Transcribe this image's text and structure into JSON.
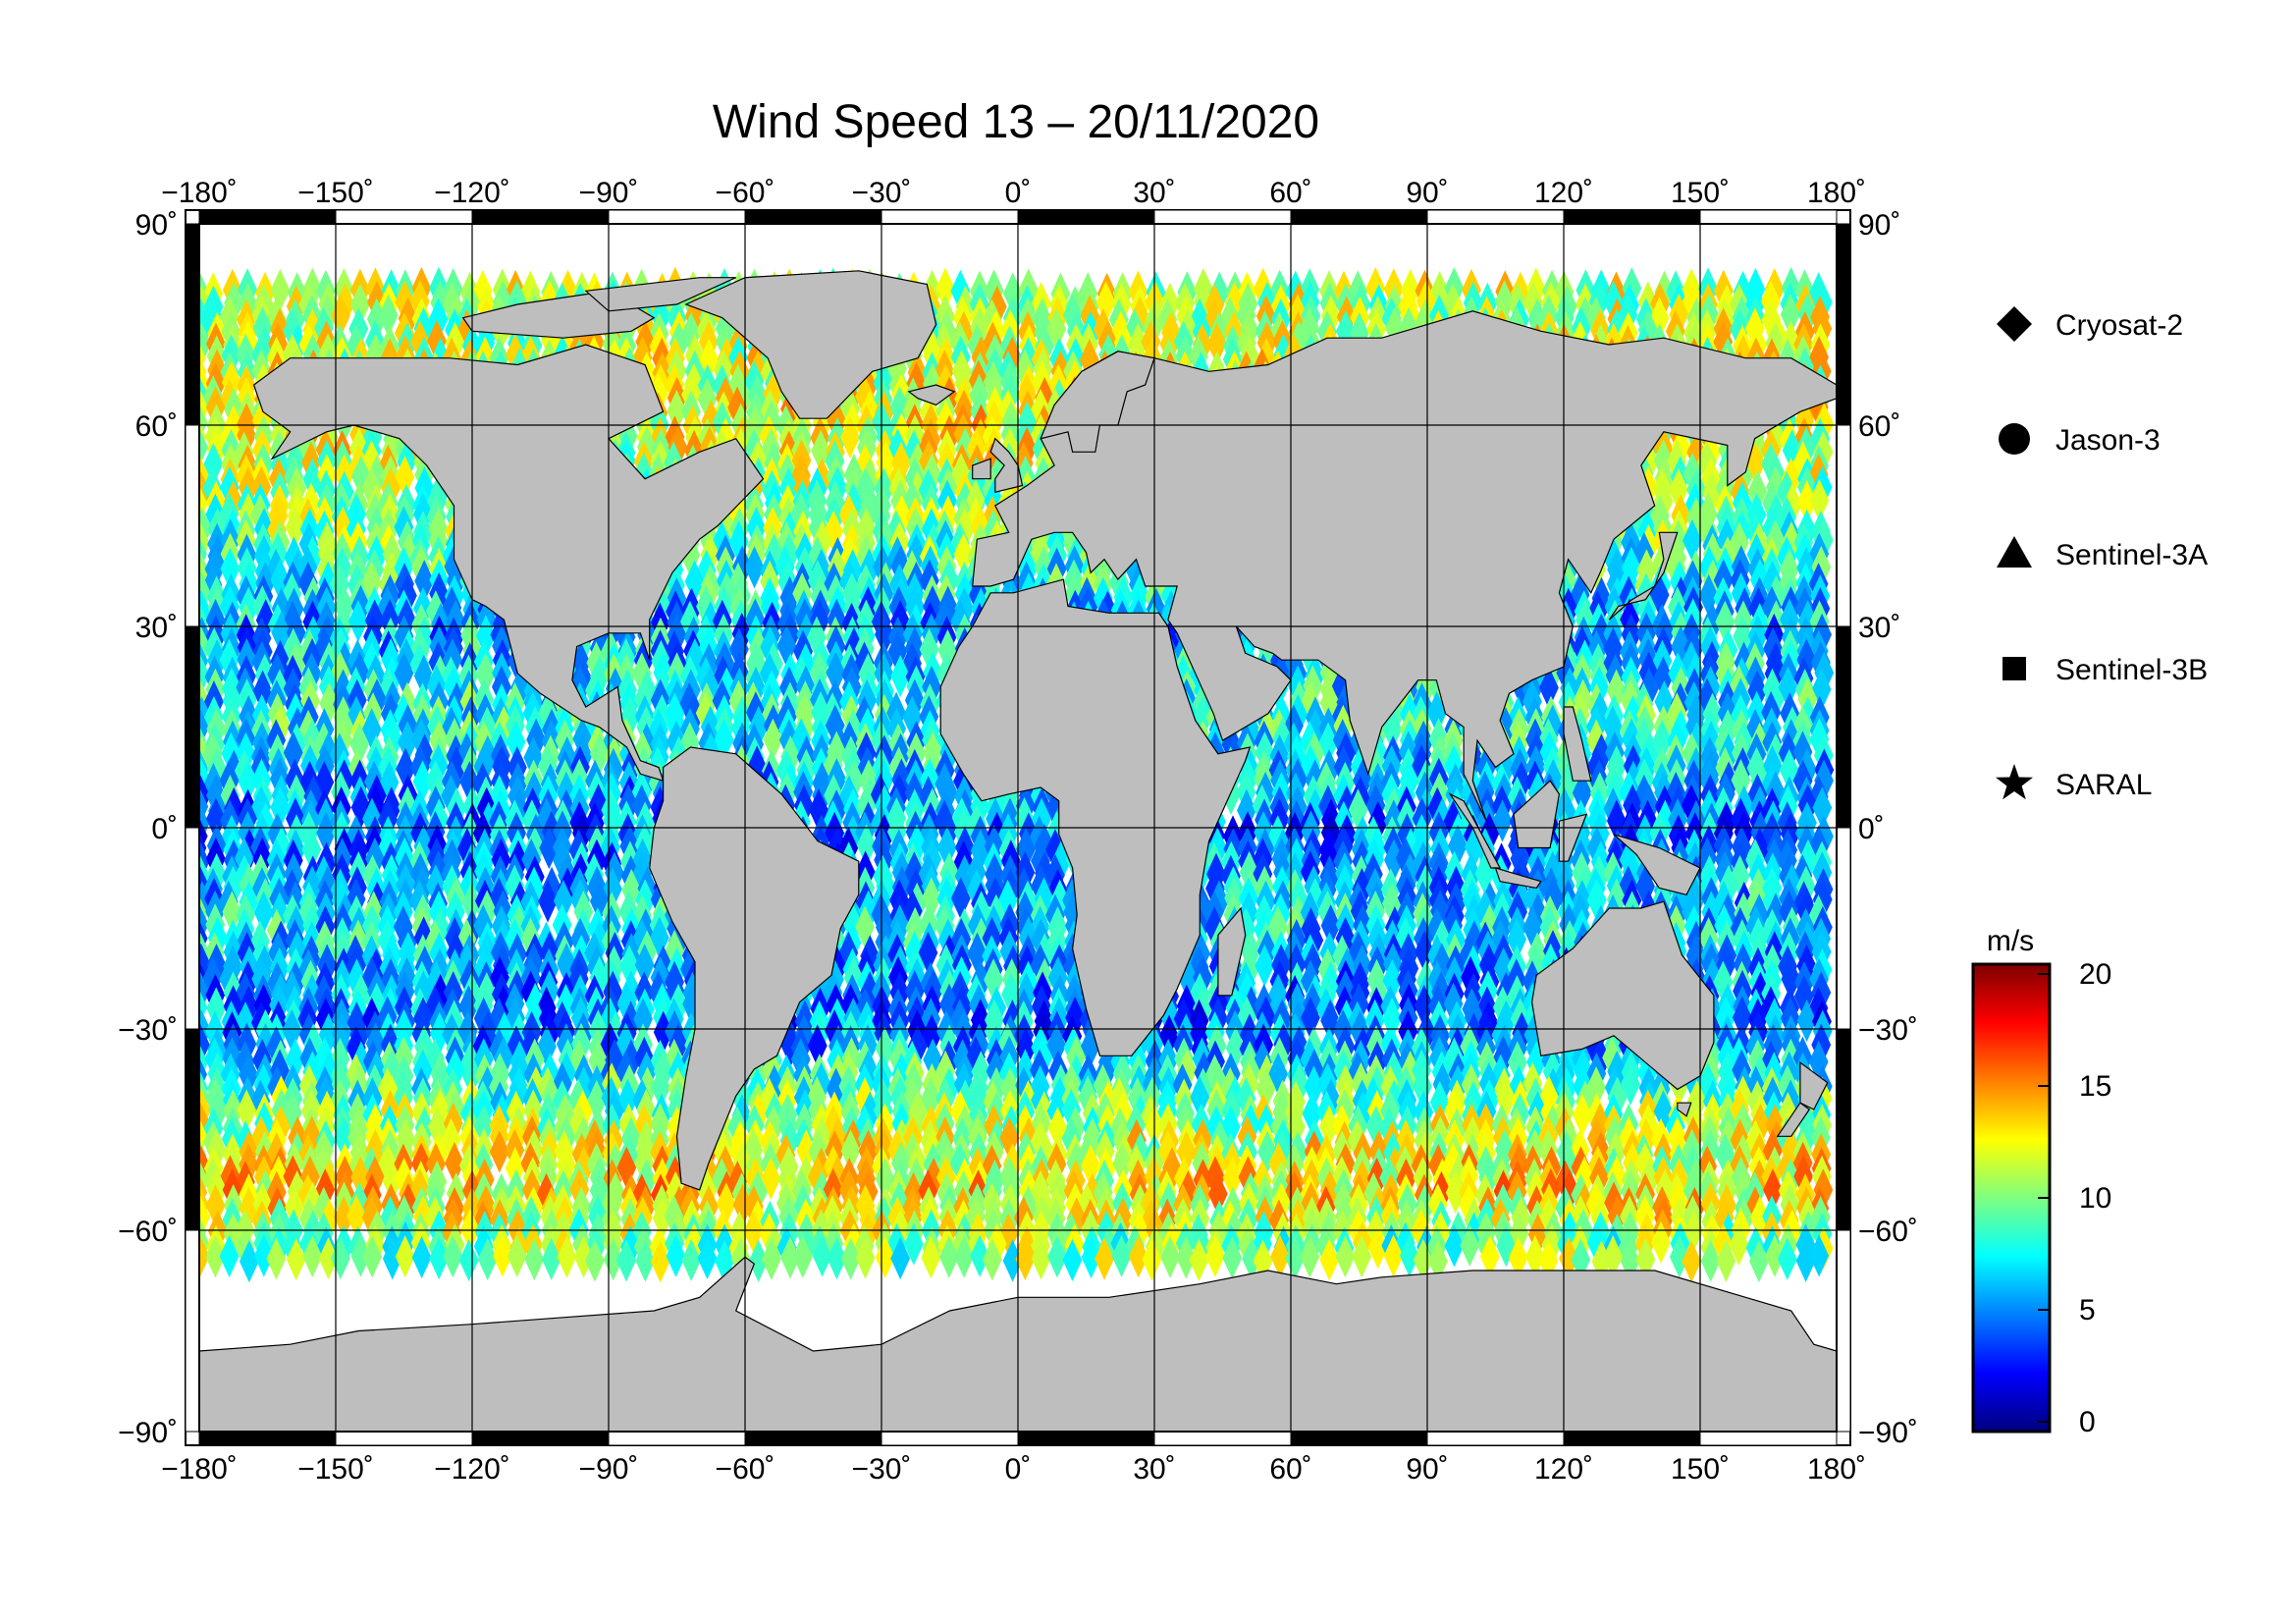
{
  "title": "Wind Speed 13 – 20/11/2020",
  "map": {
    "projection": "equirectangular",
    "lon_range": [
      -180,
      180
    ],
    "lat_range": [
      -90,
      90
    ],
    "grid_lon_step": 30,
    "grid_lat_step": 30,
    "land_color": "#bebebe",
    "ice_color": "#ffffff",
    "ocean_background": "#ffffff",
    "lon_ticks": [
      "−180˚",
      "−150˚",
      "−120˚",
      "−90˚",
      "−60˚",
      "−30˚",
      "0˚",
      "30˚",
      "60˚",
      "90˚",
      "120˚",
      "150˚",
      "180˚"
    ],
    "lat_ticks": [
      "90˚",
      "60˚",
      "30˚",
      "0˚",
      "−30˚",
      "−60˚",
      "−90˚"
    ]
  },
  "legend": {
    "items": [
      {
        "label": "Cryosat-2",
        "icon": "diamond-icon"
      },
      {
        "label": "Jason-3",
        "icon": "circle-icon"
      },
      {
        "label": "Sentinel-3A",
        "icon": "triangle-icon"
      },
      {
        "label": "Sentinel-3B",
        "icon": "square-icon"
      },
      {
        "label": "SARAL",
        "icon": "star-icon"
      }
    ]
  },
  "colorbar": {
    "unit": "m/s",
    "min": 0,
    "max": 20,
    "ticks": [
      "0",
      "5",
      "10",
      "15",
      "20"
    ],
    "colormap": "jet",
    "colors": [
      "#00007f",
      "#0000ff",
      "#007fff",
      "#00ffff",
      "#7fff7f",
      "#ffff00",
      "#ff7f00",
      "#ff0000",
      "#7f0000"
    ]
  },
  "chart_data": {
    "type": "heatmap",
    "title": "Wind Speed 13 – 20/11/2020",
    "x_range": [
      -180,
      180
    ],
    "y_range": [
      -90,
      90
    ],
    "value_unit": "m/s",
    "value_range": [
      0,
      20
    ],
    "latitude_band_mean_speed": [
      {
        "lat": 75,
        "value": 11
      },
      {
        "lat": 60,
        "value": 12
      },
      {
        "lat": 45,
        "value": 10
      },
      {
        "lat": 30,
        "value": 6
      },
      {
        "lat": 15,
        "value": 8
      },
      {
        "lat": 0,
        "value": 5
      },
      {
        "lat": -15,
        "value": 7
      },
      {
        "lat": -30,
        "value": 5
      },
      {
        "lat": -45,
        "value": 11
      },
      {
        "lat": -55,
        "value": 13
      },
      {
        "lat": -62,
        "value": 10
      }
    ]
  }
}
